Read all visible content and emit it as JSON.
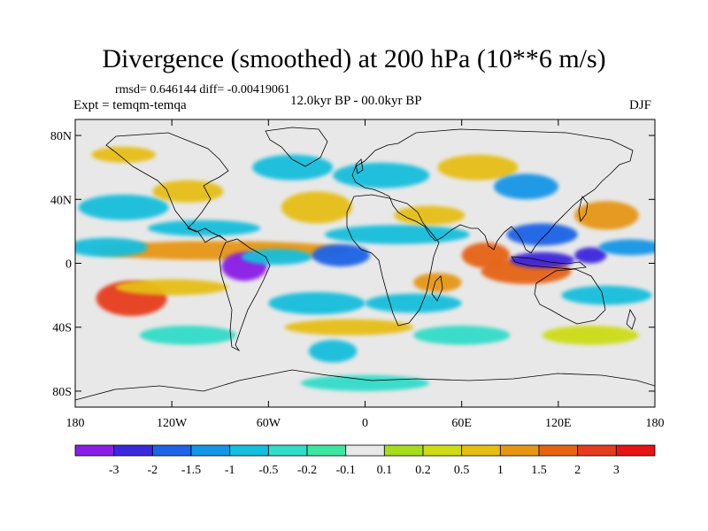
{
  "title": "Divergence (smoothed) at 200 hPa (10**6 m/s)",
  "stats": "rmsd= 0.646144 diff= -0.00419061",
  "experiment": "Expt = temqm-temqa",
  "period": "12.0kyr BP - 00.0kyr BP",
  "season": "DJF",
  "map": {
    "lat_ticks": [
      "80N",
      "40N",
      "0",
      "40S",
      "80S"
    ],
    "lat_values": [
      80,
      40,
      0,
      -40,
      -80
    ],
    "lon_ticks": [
      "180",
      "120W",
      "60W",
      "0",
      "60E",
      "120E",
      "180"
    ],
    "lon_values": [
      -180,
      -120,
      -60,
      0,
      60,
      120,
      180
    ],
    "lat_range": [
      -90,
      90
    ],
    "lon_range": [
      -180,
      180
    ],
    "background": "#e8e8e8"
  },
  "colorbar": {
    "labels": [
      "-3",
      "-2",
      "-1.5",
      "-1",
      "-0.5",
      "-0.2",
      "-0.1",
      "0.1",
      "0.2",
      "0.5",
      "1",
      "1.5",
      "2",
      "3"
    ],
    "colors": [
      "#8a1ee6",
      "#3c28dc",
      "#1e64e6",
      "#1496e6",
      "#14bedc",
      "#32dcc8",
      "#3ce6a0",
      "#e8e8e8",
      "#a5dc1e",
      "#cddc14",
      "#e6be14",
      "#e69614",
      "#e66414",
      "#e63c1e",
      "#e61414"
    ]
  },
  "regions": [
    {
      "lon": -90,
      "lat": 8,
      "rx": 80,
      "ry": 6,
      "v": 1.2
    },
    {
      "lon": -75,
      "lat": -2,
      "rx": 14,
      "ry": 9,
      "v": -3.2
    },
    {
      "lon": -55,
      "lat": 4,
      "rx": 22,
      "ry": 5,
      "v": -1.0
    },
    {
      "lon": -145,
      "lat": -22,
      "rx": 22,
      "ry": 11,
      "v": 2.0
    },
    {
      "lon": -120,
      "lat": -15,
      "rx": 35,
      "ry": 5,
      "v": 0.7
    },
    {
      "lon": -160,
      "lat": 10,
      "rx": 25,
      "ry": 6,
      "v": -0.6
    },
    {
      "lon": -150,
      "lat": 35,
      "rx": 28,
      "ry": 8,
      "v": -1.0
    },
    {
      "lon": -110,
      "lat": 45,
      "rx": 22,
      "ry": 7,
      "v": 0.8
    },
    {
      "lon": -100,
      "lat": 22,
      "rx": 35,
      "ry": 5,
      "v": -0.8
    },
    {
      "lon": -15,
      "lat": 5,
      "rx": 18,
      "ry": 7,
      "v": -2.0
    },
    {
      "lon": 20,
      "lat": 18,
      "rx": 45,
      "ry": 6,
      "v": -1.0
    },
    {
      "lon": 40,
      "lat": 30,
      "rx": 22,
      "ry": 6,
      "v": 0.7
    },
    {
      "lon": -30,
      "lat": 35,
      "rx": 22,
      "ry": 10,
      "v": 0.9
    },
    {
      "lon": -45,
      "lat": 60,
      "rx": 25,
      "ry": 8,
      "v": -0.9
    },
    {
      "lon": 10,
      "lat": 55,
      "rx": 30,
      "ry": 8,
      "v": -0.7
    },
    {
      "lon": 70,
      "lat": 60,
      "rx": 25,
      "ry": 8,
      "v": 0.6
    },
    {
      "lon": 100,
      "lat": 48,
      "rx": 20,
      "ry": 8,
      "v": -1.2
    },
    {
      "lon": 110,
      "lat": 18,
      "rx": 22,
      "ry": 7,
      "v": -1.6
    },
    {
      "lon": 75,
      "lat": 5,
      "rx": 15,
      "ry": 8,
      "v": 1.6
    },
    {
      "lon": 100,
      "lat": -5,
      "rx": 28,
      "ry": 8,
      "v": 1.5
    },
    {
      "lon": 110,
      "lat": 2,
      "rx": 20,
      "ry": 5,
      "v": -2.2
    },
    {
      "lon": 140,
      "lat": 5,
      "rx": 10,
      "ry": 5,
      "v": -2.2
    },
    {
      "lon": 150,
      "lat": 30,
      "rx": 20,
      "ry": 9,
      "v": 1.4
    },
    {
      "lon": 165,
      "lat": 10,
      "rx": 20,
      "ry": 5,
      "v": -1.2
    },
    {
      "lon": 150,
      "lat": -20,
      "rx": 28,
      "ry": 6,
      "v": -0.8
    },
    {
      "lon": 45,
      "lat": -12,
      "rx": 15,
      "ry": 6,
      "v": 1.2
    },
    {
      "lon": 30,
      "lat": -25,
      "rx": 30,
      "ry": 6,
      "v": -0.6
    },
    {
      "lon": -30,
      "lat": -25,
      "rx": 30,
      "ry": 7,
      "v": -0.6
    },
    {
      "lon": -20,
      "lat": -55,
      "rx": 15,
      "ry": 7,
      "v": -0.7
    },
    {
      "lon": -150,
      "lat": 68,
      "rx": 20,
      "ry": 5,
      "v": 0.5
    },
    {
      "lon": -110,
      "lat": -45,
      "rx": 30,
      "ry": 6,
      "v": -0.5
    },
    {
      "lon": -10,
      "lat": -40,
      "rx": 40,
      "ry": 5,
      "v": 0.6
    },
    {
      "lon": 60,
      "lat": -45,
      "rx": 30,
      "ry": 6,
      "v": -0.5
    },
    {
      "lon": 140,
      "lat": -45,
      "rx": 30,
      "ry": 6,
      "v": 0.4
    },
    {
      "lon": 0,
      "lat": -75,
      "rx": 40,
      "ry": 5,
      "v": -0.3
    }
  ]
}
